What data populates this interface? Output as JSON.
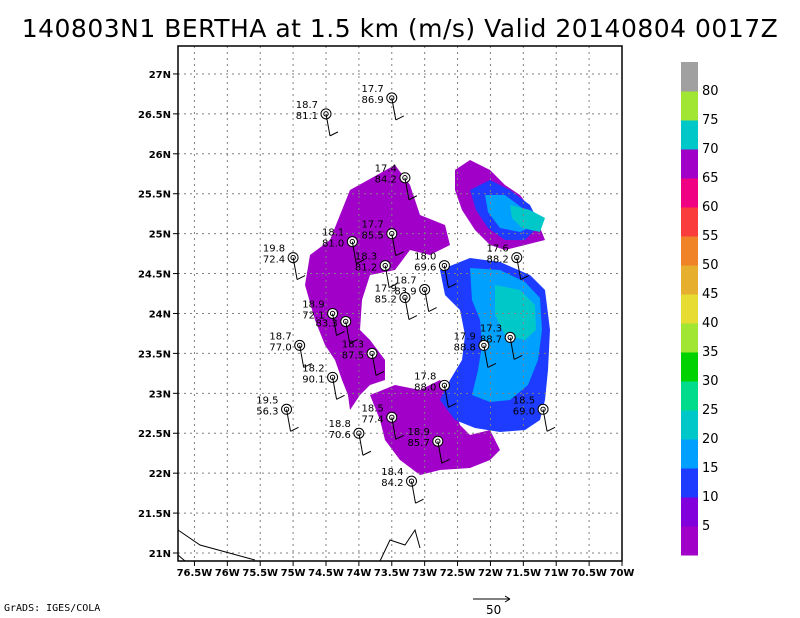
{
  "title": "140803N1 BERTHA at 1.5 km (m/s) Valid 20140804 0017Z",
  "credit": "GrADS: IGES/COLA",
  "reference_vector": {
    "label": "50"
  },
  "axes": {
    "lon_ticks": [
      "76.5W",
      "76W",
      "75.5W",
      "75W",
      "74.5W",
      "74W",
      "73.5W",
      "73W",
      "72.5W",
      "72W",
      "71.5W",
      "71W",
      "70.5W",
      "70W"
    ],
    "lat_ticks": [
      "21N",
      "21.5N",
      "22N",
      "22.5N",
      "23N",
      "23.5N",
      "24N",
      "24.5N",
      "25N",
      "25.5N",
      "26N",
      "26.5N",
      "27N"
    ]
  },
  "colorbar": {
    "labels": [
      "5",
      "10",
      "15",
      "20",
      "25",
      "30",
      "35",
      "40",
      "45",
      "50",
      "55",
      "60",
      "65",
      "70",
      "75",
      "80"
    ],
    "colors": [
      "#a000c8",
      "#8200dc",
      "#1e3cff",
      "#00a0ff",
      "#00c8c8",
      "#00dc8c",
      "#00d200",
      "#a0e632",
      "#e6dc32",
      "#e6af2d",
      "#f08228",
      "#fa3c3c",
      "#f00082",
      "#a000c8",
      "#00c8c8",
      "#a0e632",
      "#a0a0a0"
    ]
  },
  "map_data": {
    "wind_colors": {
      "v5": "#a000c8",
      "v10": "#1e3cff",
      "v15": "#00a0ff",
      "v20": "#00a0ff",
      "v25": "#00c8c8"
    },
    "observations": [
      {
        "lon": -74.5,
        "lat": 26.5,
        "t": "18.7",
        "rh": "81.1"
      },
      {
        "lon": -73.5,
        "lat": 26.7,
        "t": "17.7",
        "rh": "86.9"
      },
      {
        "lon": -73.3,
        "lat": 25.7,
        "t": "17.4",
        "rh": "84.2"
      },
      {
        "lon": -74.1,
        "lat": 24.9,
        "t": "18.1",
        "rh": "81.0"
      },
      {
        "lon": -75.0,
        "lat": 24.7,
        "t": "19.8",
        "rh": "72.4"
      },
      {
        "lon": -73.5,
        "lat": 25.0,
        "t": "17.7",
        "rh": "85.5"
      },
      {
        "lon": -73.6,
        "lat": 24.6,
        "t": "18.3",
        "rh": "81.2"
      },
      {
        "lon": -72.7,
        "lat": 24.6,
        "t": "18.0",
        "rh": "69.6"
      },
      {
        "lon": -71.6,
        "lat": 24.7,
        "t": "17.6",
        "rh": "88.2"
      },
      {
        "lon": -73.0,
        "lat": 24.3,
        "t": "18.7",
        "rh": "83.9"
      },
      {
        "lon": -73.3,
        "lat": 24.2,
        "t": "17.9",
        "rh": "85.2"
      },
      {
        "lon": -74.4,
        "lat": 24.0,
        "t": "18.9",
        "rh": "72.1"
      },
      {
        "lon": -74.2,
        "lat": 23.9,
        "t": "",
        "rh": "83.3"
      },
      {
        "lon": -74.9,
        "lat": 23.6,
        "t": "18.7",
        "rh": "77.0"
      },
      {
        "lon": -73.8,
        "lat": 23.5,
        "t": "18.3",
        "rh": "87.5"
      },
      {
        "lon": -71.7,
        "lat": 23.7,
        "t": "17.3",
        "rh": "88.7"
      },
      {
        "lon": -72.1,
        "lat": 23.6,
        "t": "17.9",
        "rh": "88.8"
      },
      {
        "lon": -74.4,
        "lat": 23.2,
        "t": "18.2",
        "rh": "90.1"
      },
      {
        "lon": -72.7,
        "lat": 23.1,
        "t": "17.8",
        "rh": "88.0"
      },
      {
        "lon": -75.1,
        "lat": 22.8,
        "t": "19.5",
        "rh": "56.3"
      },
      {
        "lon": -73.5,
        "lat": 22.7,
        "t": "18.5",
        "rh": "77.4"
      },
      {
        "lon": -74.0,
        "lat": 22.5,
        "t": "18.8",
        "rh": "70.6"
      },
      {
        "lon": -72.8,
        "lat": 22.4,
        "t": "18.9",
        "rh": "85.7"
      },
      {
        "lon": -71.2,
        "lat": 22.8,
        "t": "18.5",
        "rh": "69.0"
      },
      {
        "lon": -73.2,
        "lat": 21.9,
        "t": "18.4",
        "rh": "84.2"
      }
    ]
  }
}
